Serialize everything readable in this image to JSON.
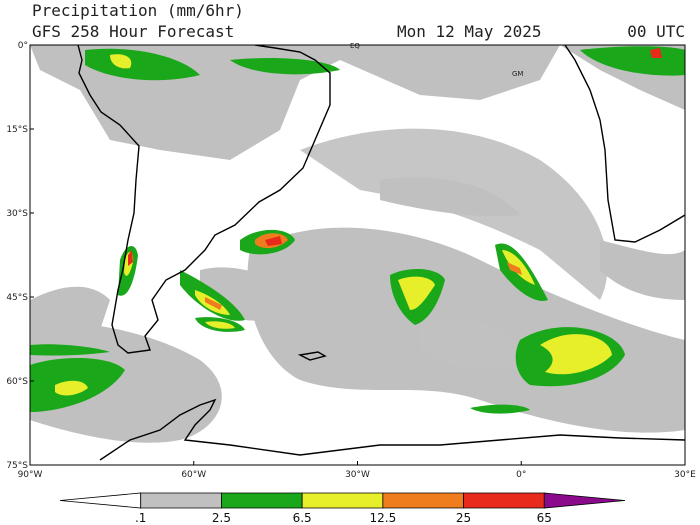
{
  "header": {
    "title": "Precipitation (mm/6hr)",
    "subtitle": "GFS 258 Hour Forecast",
    "date": "Mon 12 May 2025",
    "time": "00 UTC"
  },
  "lat_labels": [
    "0°",
    "15°S",
    "30°S",
    "45°S",
    "60°S",
    "75°S"
  ],
  "lon_labels": [
    "90°W",
    "60°W",
    "30°W",
    "0°",
    "30°E"
  ],
  "map_labels": [
    "EQ",
    "GM"
  ],
  "colorbar": {
    "colors": [
      "#ffffff",
      "#c0c0c0",
      "#1aa71a",
      "#e6ef2a",
      "#ef7d1d",
      "#e82a1d",
      "#8b0a8b"
    ],
    "labels": [
      ".1",
      "2.5",
      "6.5",
      "12.5",
      "25",
      "65"
    ]
  }
}
